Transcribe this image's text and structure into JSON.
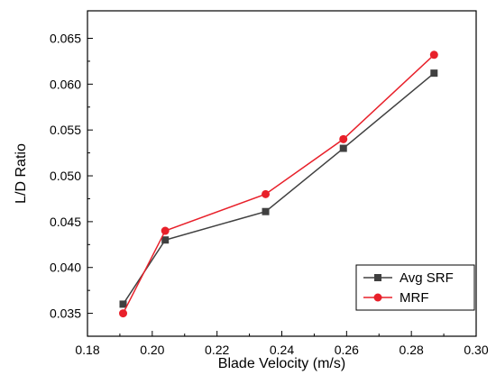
{
  "chart_data": {
    "type": "line",
    "title": "",
    "xlabel": "Blade Velocity (m/s)",
    "ylabel": "L/D Ratio",
    "xlim": [
      0.18,
      0.3
    ],
    "ylim": [
      0.0325,
      0.068
    ],
    "xticks": [
      "0.18",
      "0.20",
      "0.22",
      "0.24",
      "0.26",
      "0.28",
      "0.30"
    ],
    "yticks": [
      "0.035",
      "0.040",
      "0.045",
      "0.050",
      "0.055",
      "0.060",
      "0.065"
    ],
    "grid": false,
    "legend_position": "bottom-right",
    "series": [
      {
        "name": "Avg SRF",
        "color": "#404040",
        "marker": "square",
        "x": [
          0.191,
          0.204,
          0.235,
          0.259,
          0.287
        ],
        "y": [
          0.036,
          0.043,
          0.0461,
          0.053,
          0.0612
        ]
      },
      {
        "name": "MRF",
        "color": "#e8202a",
        "marker": "circle",
        "x": [
          0.191,
          0.204,
          0.235,
          0.259,
          0.287
        ],
        "y": [
          0.035,
          0.044,
          0.048,
          0.054,
          0.0632
        ]
      }
    ]
  }
}
